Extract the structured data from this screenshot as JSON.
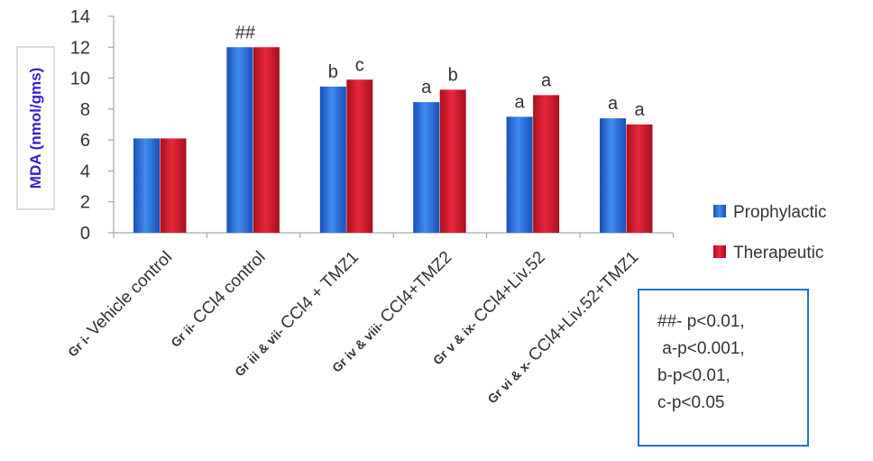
{
  "chart_data": {
    "type": "bar",
    "title": "",
    "ylabel": "MDA (nmol/gms)",
    "xlabel": "",
    "ylim": [
      0,
      14
    ],
    "yticks": [
      0,
      2,
      4,
      6,
      8,
      10,
      12,
      14
    ],
    "grid": false,
    "legend_position": "right",
    "categories": [
      {
        "prefix": "Gr i-",
        "name": "Vehicle control"
      },
      {
        "prefix": "Gr ii-",
        "name": "CCl4 control"
      },
      {
        "prefix": "Gr iii & vii-",
        "name": "CCl4  + TMZ1"
      },
      {
        "prefix": "Gr iv & viii-",
        "name": "CCl4+TMZ2"
      },
      {
        "prefix": "Gr v & ix-",
        "name": "CCl4+Liv.52"
      },
      {
        "prefix": "Gr vi & x-",
        "name": "CCl4+Liv.52+TMZ1"
      }
    ],
    "series": [
      {
        "name": "Prophylactic",
        "color": "#2a6fe0",
        "values": [
          6.1,
          12.0,
          9.45,
          8.45,
          7.5,
          7.4
        ],
        "labels": [
          "",
          "##",
          "b",
          "a",
          "a",
          "a"
        ]
      },
      {
        "name": "Therapeutic",
        "color": "#d0182a",
        "values": [
          6.1,
          12.0,
          9.9,
          9.25,
          8.9,
          7.0
        ],
        "labels": [
          "",
          "",
          "c",
          "b",
          "a",
          "a"
        ]
      }
    ],
    "notes": [
      "##- p<0.01,",
      " a-p<0.001,",
      "b-p<0.01,",
      "c-p<0.05"
    ]
  }
}
